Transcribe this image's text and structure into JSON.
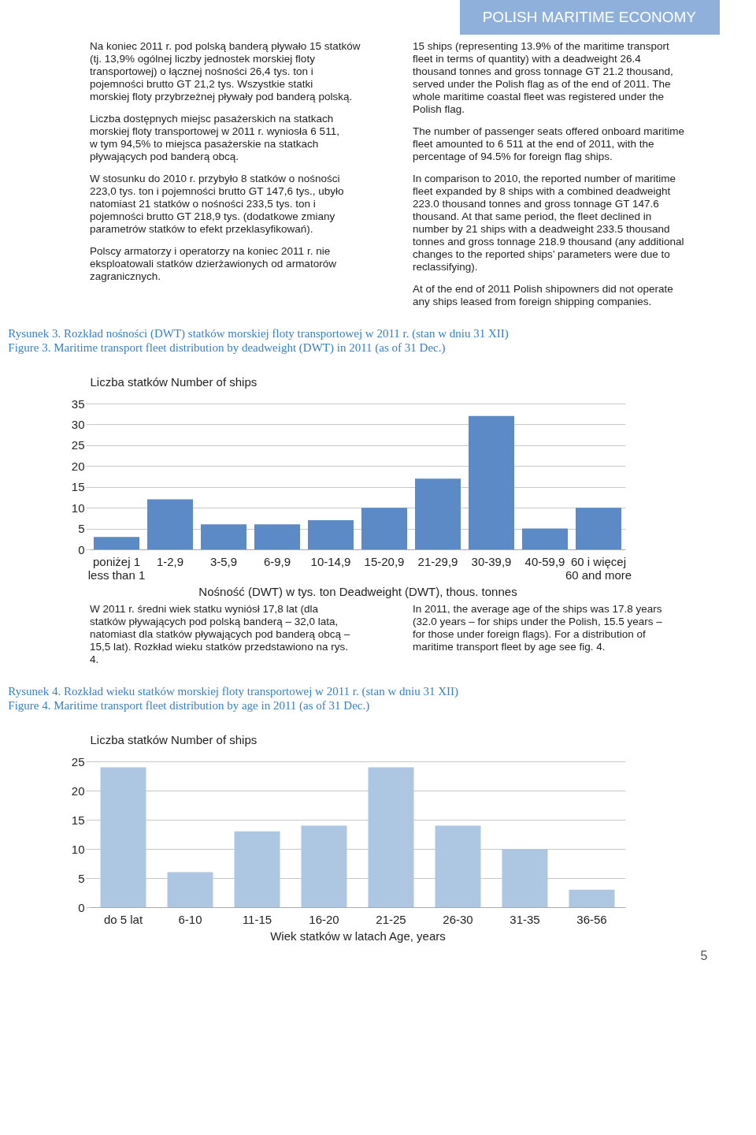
{
  "chart_data": [
    {
      "type": "bar",
      "title": "Rysunek 3. Rozkład nośności (DWT) statków morskiej floty transportowej w 2011 r. (stan w dniu 31 XII)",
      "subtitle": "Figure 3.   Maritime transport fleet distribution by deadweight (DWT) in 2011 (as of 31 Dec.)",
      "ylabel": "Liczba statków  Number of ships",
      "xlabel": "Nośność (DWT) w tys. ton   Deadweight (DWT), thous. tonnes",
      "categories": [
        "poniżej 1\nless than 1",
        "1-2,9",
        "3-5,9",
        "6-9,9",
        "10-14,9",
        "15-20,9",
        "21-29,9",
        "30-39,9",
        "40-59,9",
        "60 i więcej\n60 and more"
      ],
      "values": [
        3,
        12,
        6,
        6,
        7,
        10,
        17,
        32,
        5,
        10
      ],
      "color": "#5b8ac6",
      "ylim": [
        0,
        35
      ],
      "yticks": [
        0,
        5,
        10,
        15,
        20,
        25,
        30,
        35
      ],
      "grid": "y",
      "annotations": [
        "POLISH MARITIME ECONOMY",
        "Na koniec 2011 r. pod polską banderą pływało 15 statków (tj. 13,9% ogólnej liczby jednostek morskiej floty transportowej) o łącznej nośności 26,4 tys. ton i pojemności brutto GT 21,2 tys. Wszystkie statki morskiej floty przybrzeżnej pływały pod banderą polską.",
        "15 ships (representing 13.9% of the maritime transport fleet in terms of quantity) with a deadweight 26.4 thousand tonnes and gross tonnage GT 21.2 thousand, served under the Polish flag as of the end of 2011. The whole maritime coastal fleet was registered under the Polish flag.",
        "Liczba dostępnych miejsc pasażerskich na statkach morskiej floty transportowej w 2011 r. wyniosła 6 511, w tym 94,5% to miejsca pasażerskie na statkach pływających pod banderą obcą.",
        "The number of passenger seats offered onboard maritime fleet amounted to 6 511 at the end of 2011, with the percentage of 94.5% for foreign flag ships.",
        "W stosunku do 2010 r. przybyło 8 statków o nośności 223,0 tys. ton i pojemności brutto GT 147,6 tys., ubyło natomiast 21 statków o nośności 233,5 tys. ton i pojemności brutto GT 218,9 tys. (dodatkowe zmiany parametrów statków to efekt przeklasyfikowań).",
        "In comparison to 2010, the reported number of maritime fleet expanded by 8 ships with a combined deadweight 223.0 thousand tonnes and gross tonnage GT 147.6 thousand. At that same period, the fleet declined in number by 21 ships with a deadweight 233.5 thousand tonnes and gross tonnage 218.9 thousand (any additional changes to the reported ships’ parameters were due to reclassifying).",
        "Polscy armatorzy i operatorzy na koniec 2011 r. nie eksploatowali statków dzierżawionych od armatorów zagranicznych.",
        "At of the end of 2011 Polish shipowners did not operate any ships leased from foreign shipping companies."
      ]
    },
    {
      "type": "bar",
      "title": "Rysunek 4. Rozkład wieku statków morskiej floty transportowej w 2011 r. (stan w dniu 31 XII)",
      "subtitle": "Figure 4.   Maritime transport fleet distribution by age in 2011 (as of 31 Dec.)",
      "ylabel": "Liczba statków  Number of ships",
      "xlabel": "Wiek statków w latach   Age, years",
      "categories": [
        "do 5 lat",
        "6-10",
        "11-15",
        "16-20",
        "21-25",
        "26-30",
        "31-35",
        "36-56"
      ],
      "values": [
        24,
        6,
        13,
        14,
        24,
        14,
        10,
        3
      ],
      "color": "#adc6e2",
      "ylim": [
        0,
        25
      ],
      "yticks": [
        0,
        5,
        10,
        15,
        20,
        25
      ],
      "grid": "y",
      "annotations": [
        "W 2011 r. średni wiek statku wyniósł 17,8 lat (dla statków pływających pod polską banderą – 32,0 lata, natomiast dla statków pływających pod banderą obcą – 15,5 lat). Rozkład wieku statków przedstawiono na rys. 4.",
        "In 2011, the average age of the ships was 17.8 years (32.0 years – for ships under the Polish, 15.5 years – for those under foreign flags). For a distribution of maritime transport fleet by age see fig. 4.",
        "5"
      ]
    }
  ]
}
